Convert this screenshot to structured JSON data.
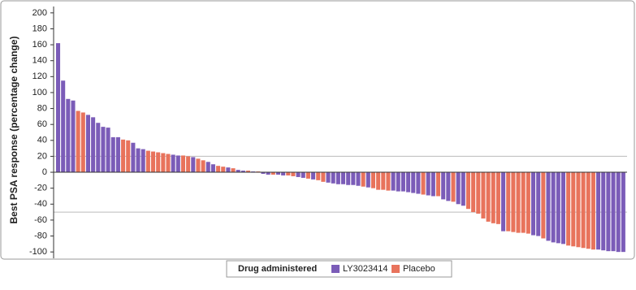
{
  "chart_data": {
    "type": "waterfall",
    "y_label": "Best PSA response (percentage change)",
    "legend_title": "Drug administered",
    "ylim": [
      -108,
      208
    ],
    "yticks": [
      -100,
      -80,
      -60,
      -40,
      -20,
      0,
      20,
      40,
      60,
      80,
      100,
      120,
      140,
      160,
      180,
      200
    ],
    "reference_lines": [
      20,
      -50
    ],
    "series": [
      {
        "name": "LY3023414",
        "color": "#7b5cb8",
        "values": [
          162,
          115,
          92,
          90,
          null,
          null,
          72,
          69,
          62,
          57,
          56,
          44,
          44,
          null,
          null,
          37,
          30,
          29,
          null,
          null,
          null,
          null,
          null,
          22,
          21,
          null,
          null,
          19,
          null,
          null,
          13,
          10,
          null,
          null,
          6,
          null,
          3,
          2,
          null,
          1,
          null,
          -2,
          -3,
          null,
          -3,
          -4,
          null,
          null,
          -6,
          -7,
          null,
          -9,
          null,
          null,
          -13,
          -14,
          -15,
          -15,
          -16,
          -16,
          -17,
          null,
          -19,
          null,
          null,
          null,
          null,
          -23,
          -24,
          -24,
          -25,
          -26,
          -27,
          null,
          -29,
          -30,
          null,
          -34,
          -36,
          null,
          -40,
          -42,
          null,
          null,
          null,
          null,
          null,
          null,
          null,
          -74,
          null,
          null,
          null,
          null,
          null,
          -79,
          -80,
          null,
          -86,
          -88,
          -89,
          -90,
          null,
          null,
          null,
          null,
          null,
          null,
          -97,
          -98,
          -99,
          -99,
          -100,
          -100
        ]
      },
      {
        "name": "Placebo",
        "color": "#e8735c",
        "values": [
          null,
          null,
          null,
          null,
          77,
          75,
          null,
          null,
          null,
          null,
          null,
          null,
          null,
          41,
          40,
          null,
          null,
          null,
          27,
          26,
          25,
          24,
          23,
          null,
          null,
          21,
          20,
          null,
          17,
          15,
          null,
          null,
          8,
          7,
          null,
          5,
          null,
          null,
          2,
          null,
          1,
          null,
          null,
          -3,
          null,
          null,
          -4,
          -5,
          null,
          null,
          -8,
          null,
          -10,
          -12,
          null,
          null,
          null,
          null,
          null,
          null,
          null,
          -18,
          null,
          -20,
          -22,
          -22,
          -23,
          null,
          null,
          null,
          null,
          null,
          null,
          -28,
          null,
          null,
          -30,
          null,
          null,
          -37,
          null,
          null,
          -46,
          -50,
          -52,
          -58,
          -62,
          -64,
          -65,
          null,
          -74,
          -75,
          -76,
          -76,
          -77,
          null,
          null,
          -83,
          null,
          null,
          null,
          null,
          -92,
          -93,
          -94,
          -95,
          -96,
          -97,
          null,
          null,
          null,
          null,
          null,
          null
        ]
      }
    ]
  }
}
